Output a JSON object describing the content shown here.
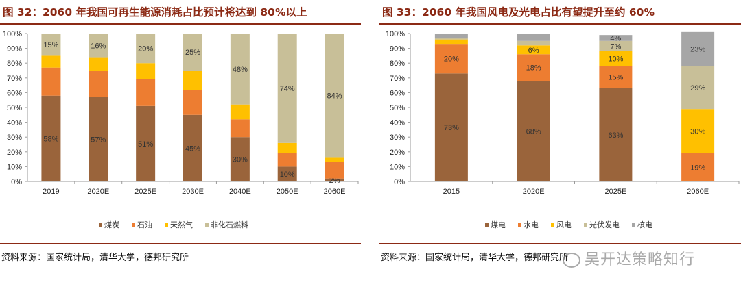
{
  "colors": {
    "title": "#8c2a15",
    "coal": "#9a643b",
    "oil": "#ed7d31",
    "gas": "#ffc000",
    "nonfossil": "#c8bf98",
    "coal_power": "#9a643b",
    "hydro": "#ed7d31",
    "wind": "#ffc000",
    "solar": "#c8bf98",
    "nuclear": "#a6a6a6"
  },
  "left": {
    "title": "图 32：2060 年我国可再生能源消耗占比预计将达到 80%以上",
    "source": "资料来源：国家统计局，清华大学，德邦研究所"
  },
  "right": {
    "title": "图 33：2060 年我国风电及光电占比有望提升至约 60%",
    "source": "资料来源：国家统计局，清华大学，德邦研究所"
  },
  "watermark": "吴开达策略知行",
  "chart_data": [
    {
      "type": "bar",
      "stacked": true,
      "categories": [
        "2019",
        "2020E",
        "2025E",
        "2030E",
        "2040E",
        "2050E",
        "2060E"
      ],
      "ylim": [
        0,
        100
      ],
      "yticks": [
        "0%",
        "10%",
        "20%",
        "30%",
        "40%",
        "50%",
        "60%",
        "70%",
        "80%",
        "90%",
        "100%"
      ],
      "legend_position": "bottom",
      "series": [
        {
          "name": "煤炭",
          "color_key": "coal",
          "values": [
            58,
            57,
            51,
            45,
            30,
            10,
            2
          ],
          "labels": [
            "58%",
            "57%",
            "51%",
            "45%",
            "30%",
            "10%",
            "2%"
          ]
        },
        {
          "name": "石油",
          "color_key": "oil",
          "values": [
            19,
            18,
            18,
            17,
            12,
            9,
            11
          ],
          "labels": [
            "",
            "",
            "",
            "",
            "",
            "",
            ""
          ]
        },
        {
          "name": "天然气",
          "color_key": "gas",
          "values": [
            8,
            9,
            11,
            13,
            10,
            7,
            3
          ],
          "labels": [
            "",
            "",
            "",
            "",
            "",
            "",
            ""
          ]
        },
        {
          "name": "非化石燃料",
          "color_key": "nonfossil",
          "values": [
            15,
            16,
            20,
            25,
            48,
            74,
            84
          ],
          "labels": [
            "15%",
            "16%",
            "20%",
            "25%",
            "48%",
            "74%",
            "84%"
          ]
        }
      ]
    },
    {
      "type": "bar",
      "stacked": true,
      "categories": [
        "2015",
        "2020E",
        "2025E",
        "2060E"
      ],
      "ylim": [
        0,
        100
      ],
      "yticks": [
        "0%",
        "10%",
        "20%",
        "30%",
        "40%",
        "50%",
        "60%",
        "70%",
        "80%",
        "90%",
        "100%"
      ],
      "legend_position": "bottom",
      "series": [
        {
          "name": "煤电",
          "color_key": "coal_power",
          "values": [
            73,
            68,
            63,
            0
          ],
          "labels": [
            "73%",
            "68%",
            "63%",
            ""
          ]
        },
        {
          "name": "水电",
          "color_key": "hydro",
          "values": [
            20,
            18,
            15,
            19
          ],
          "labels": [
            "20%",
            "18%",
            "15%",
            "19%"
          ]
        },
        {
          "name": "风电",
          "color_key": "wind",
          "values": [
            3,
            6,
            10,
            30
          ],
          "labels": [
            "",
            "6%",
            "10%",
            "30%"
          ]
        },
        {
          "name": "光伏发电",
          "color_key": "solar",
          "values": [
            1,
            3,
            7,
            29
          ],
          "labels": [
            "",
            "",
            "7%",
            "29%"
          ]
        },
        {
          "name": "核电",
          "color_key": "nuclear",
          "values": [
            3,
            5,
            4,
            23
          ],
          "labels": [
            "",
            "",
            "4%",
            "23%"
          ]
        }
      ]
    }
  ]
}
